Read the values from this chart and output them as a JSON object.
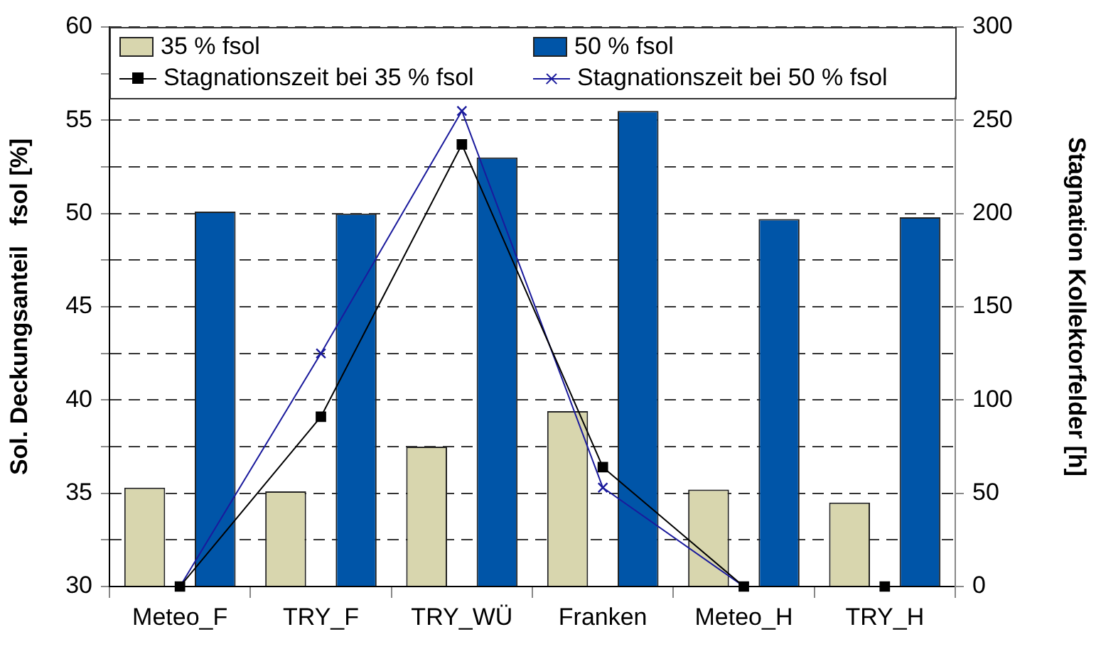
{
  "chart_data": {
    "type": "bar",
    "ylabel": "Sol. Deckungsanteil   fsol [%]",
    "y2label": "Stagnation Kollektorfelder [h]",
    "categories": [
      "Meteo_F",
      "TRY_F",
      "TRY_WÜ",
      "Franken",
      "Meteo_H",
      "TRY_H"
    ],
    "series": [
      {
        "name": "35 % fsol",
        "color": "#d8d6ae",
        "values": [
          35.3,
          35.1,
          37.5,
          39.4,
          35.2,
          34.5
        ]
      },
      {
        "name": "50 % fsol",
        "color": "#0055a8",
        "values": [
          50.1,
          50.0,
          53.0,
          55.5,
          49.7,
          49.8
        ]
      },
      {
        "name": "Stagnationszeit bei 35 % fsol",
        "type": "line",
        "axis": "y2",
        "marker": "square",
        "color": "#000000",
        "values": [
          0,
          91,
          237,
          64,
          0,
          0
        ]
      },
      {
        "name": "Stagnationszeit bei 50 % fsol",
        "type": "line",
        "axis": "y2",
        "marker": "cross",
        "color": "#1a1a9c",
        "values": [
          0,
          125,
          255,
          53,
          0,
          0
        ]
      }
    ],
    "ylim": [
      30,
      60
    ],
    "yticks": [
      30,
      {
        "value": 32.5,
        "label": null
      },
      35,
      {
        "value": 37.5,
        "label": null
      },
      40,
      {
        "value": 42.5,
        "label": null
      },
      45,
      {
        "value": 47.5,
        "label": null
      },
      50,
      {
        "value": 52.5,
        "label": null
      },
      55,
      {
        "value": 57.5,
        "label": null
      },
      60
    ],
    "y2lim": [
      0,
      300
    ],
    "y2ticks": [
      0,
      50,
      100,
      150,
      200,
      250,
      300
    ],
    "grid": "y",
    "legend": "top",
    "line_style": "solid"
  }
}
